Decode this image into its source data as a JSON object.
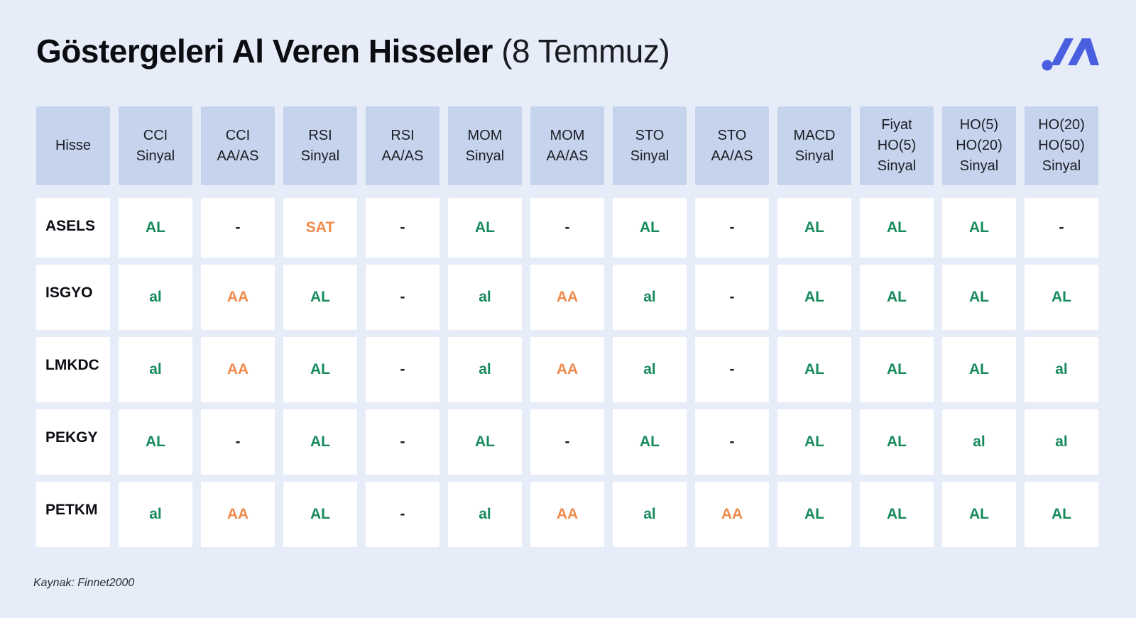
{
  "title": {
    "bold": "Göstergeleri Al Veren Hisseler",
    "light": "(8 Temmuz)"
  },
  "logo": {
    "icon": "brand-logo-icon",
    "color": "#4a5fe0"
  },
  "colors": {
    "background": "#e7edf8",
    "header_cell": "#c5d3ec",
    "green": "#178a5c",
    "orange": "#f08a4b"
  },
  "table": {
    "headers": [
      "Hisse",
      "CCI\nSinyal",
      "CCI\nAA/AS",
      "RSI\nSinyal",
      "RSI\nAA/AS",
      "MOM\nSinyal",
      "MOM\nAA/AS",
      "STO\nSinyal",
      "STO\nAA/AS",
      "MACD\nSinyal",
      "Fiyat\nHO(5)\nSinyal",
      "HO(5)\nHO(20)\nSinyal",
      "HO(20)\nHO(50)\nSinyal"
    ],
    "rows": [
      {
        "name": "ASELS",
        "cells": [
          "AL",
          "-",
          "SAT",
          "-",
          "AL",
          "-",
          "AL",
          "-",
          "AL",
          "AL",
          "AL",
          "-"
        ]
      },
      {
        "name": "ISGYO",
        "cells": [
          "al",
          "AA",
          "AL",
          "-",
          "al",
          "AA",
          "al",
          "-",
          "AL",
          "AL",
          "AL",
          "AL"
        ]
      },
      {
        "name": "LMKDC",
        "cells": [
          "al",
          "AA",
          "AL",
          "-",
          "al",
          "AA",
          "al",
          "-",
          "AL",
          "AL",
          "AL",
          "al"
        ]
      },
      {
        "name": "PEKGY",
        "cells": [
          "AL",
          "-",
          "AL",
          "-",
          "AL",
          "-",
          "AL",
          "-",
          "AL",
          "AL",
          "al",
          "al"
        ]
      },
      {
        "name": "PETKM",
        "cells": [
          "al",
          "AA",
          "AL",
          "-",
          "al",
          "AA",
          "al",
          "AA",
          "AL",
          "AL",
          "AL",
          "AL"
        ]
      }
    ]
  },
  "source": "Kaynak: Finnet2000"
}
